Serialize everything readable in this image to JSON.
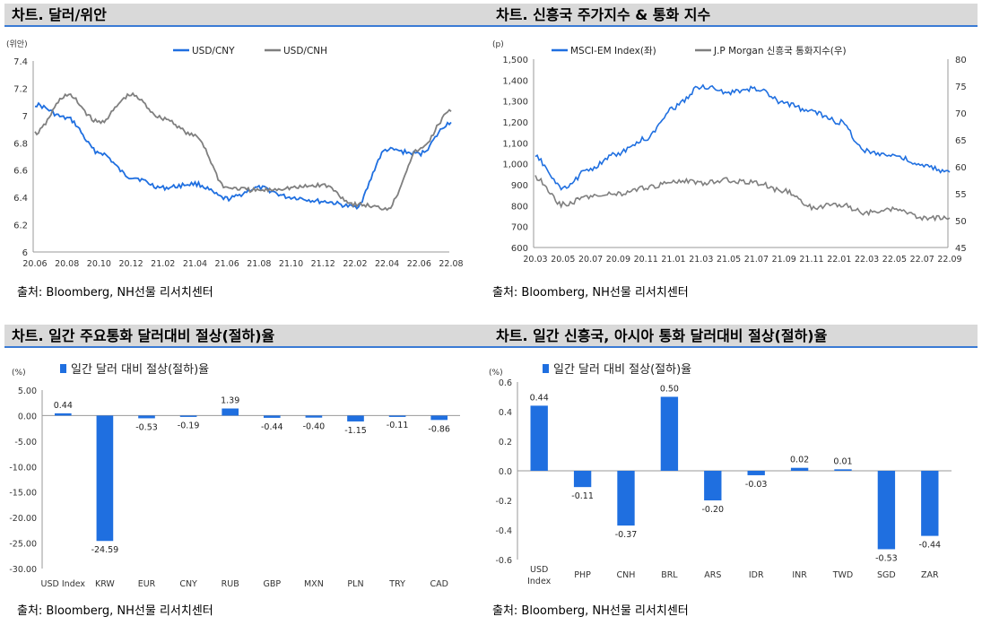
{
  "source_note": "출처: Bloomberg, NH선물 리서치센터",
  "chart_data": [
    {
      "type": "line",
      "title": "차트. 달러/위안",
      "ylabel": "(위안)",
      "ylim": [
        6,
        7.4
      ],
      "yticks": [
        "7.4",
        "7.2",
        "7",
        "6.8",
        "6.6",
        "6.4",
        "6.2",
        "6"
      ],
      "x": [
        "20.06",
        "20.08",
        "20.10",
        "20.12",
        "21.02",
        "21.04",
        "21.06",
        "21.08",
        "21.10",
        "21.12",
        "22.02",
        "22.04",
        "22.06",
        "22.08"
      ],
      "legend_placement": "top",
      "colors": {
        "USD/CNY": "#1f6fe0",
        "USD/CNH": "#7f7f7f"
      },
      "series": [
        {
          "name": "USD/CNY",
          "values": [
            7.08,
            6.98,
            6.73,
            6.55,
            6.47,
            6.5,
            6.39,
            6.47,
            6.4,
            6.37,
            6.33,
            6.75,
            6.72,
            6.95
          ]
        },
        {
          "name": "USD/CNH",
          "values": [
            6.87,
            7.15,
            6.95,
            7.15,
            6.98,
            6.85,
            6.47,
            6.45,
            6.47,
            6.49,
            6.35,
            6.32,
            6.75,
            7.03
          ]
        }
      ]
    },
    {
      "type": "line",
      "title": "차트. 신흥국 주가지수 & 통화 지수",
      "ylabel": "(p)",
      "ylim": [
        600,
        1500
      ],
      "ylim_right": [
        45,
        80
      ],
      "yticks": [
        "1,500",
        "1,400",
        "1,300",
        "1,200",
        "1,100",
        "1,000",
        "900",
        "800",
        "700",
        "600"
      ],
      "yticks_right": [
        "80",
        "75",
        "70",
        "65",
        "60",
        "55",
        "50",
        "45"
      ],
      "x": [
        "20.03",
        "20.05",
        "20.07",
        "20.09",
        "20.11",
        "21.01",
        "21.03",
        "21.05",
        "21.07",
        "21.09",
        "21.11",
        "22.01",
        "22.03",
        "22.05",
        "22.07",
        "22.09"
      ],
      "legend_placement": "top",
      "colors": {
        "MSCI-EM Index(좌)": "#1f6fe0",
        "J.P Morgan 신흥국 통화지수(우)": "#7f7f7f"
      },
      "series": [
        {
          "name": "MSCI-EM Index(좌)",
          "axis": "left",
          "values": [
            1030,
            880,
            980,
            1050,
            1120,
            1270,
            1370,
            1340,
            1360,
            1290,
            1250,
            1200,
            1060,
            1040,
            990,
            960
          ]
        },
        {
          "name": "J.P Morgan 신흥국 통화지수(우)",
          "axis": "right",
          "values": [
            58,
            53,
            54.5,
            55,
            56,
            57.5,
            57,
            57.5,
            57,
            55.5,
            52.5,
            53,
            51.5,
            52,
            50.5,
            50.5
          ]
        }
      ]
    },
    {
      "type": "bar",
      "title": "차트. 일간 주요통화 달러대비 절상(절하)율",
      "ylabel": "(%)",
      "ylim": [
        -30,
        5
      ],
      "yticks": [
        "5.00",
        "0.00",
        "-5.00",
        "-10.00",
        "-15.00",
        "-20.00",
        "-25.00",
        "-30.00"
      ],
      "legend_placement": "top-left",
      "color": "#1f6fe0",
      "categories": [
        "USD Index",
        "KRW",
        "EUR",
        "CNY",
        "RUB",
        "GBP",
        "MXN",
        "PLN",
        "TRY",
        "CAD"
      ],
      "series": [
        {
          "name": "일간 달러 대비 절상(절하)율",
          "values": [
            0.44,
            -24.59,
            -0.53,
            -0.19,
            1.39,
            -0.44,
            -0.4,
            -1.15,
            -0.11,
            -0.86
          ]
        }
      ],
      "labels": [
        "0.44",
        "-24.59",
        "-0.53",
        "-0.19",
        "1.39",
        "-0.44",
        "-0.40",
        "-1.15",
        "-0.11",
        "-0.86"
      ]
    },
    {
      "type": "bar",
      "title": "차트. 일간 신흥국, 아시아 통화 달러대비 절상(절하)율",
      "ylabel": "(%)",
      "ylim": [
        -0.6,
        0.6
      ],
      "yticks": [
        "0.6",
        "0.4",
        "0.2",
        "0.0",
        "-0.2",
        "-0.4",
        "-0.6"
      ],
      "legend_placement": "top-left",
      "color": "#1f6fe0",
      "categories": [
        "USD Index",
        "PHP",
        "CNH",
        "BRL",
        "ARS",
        "IDR",
        "INR",
        "TWD",
        "SGD",
        "ZAR"
      ],
      "series": [
        {
          "name": "일간 달러 대비 절상(절하)율",
          "values": [
            0.44,
            -0.11,
            -0.37,
            0.5,
            -0.2,
            -0.03,
            0.02,
            0.01,
            -0.53,
            -0.44
          ]
        }
      ],
      "labels": [
        "0.44",
        "-0.11",
        "-0.37",
        "0.50",
        "-0.20",
        "-0.03",
        "0.02",
        "0.01",
        "-0.53",
        "-0.44"
      ]
    }
  ]
}
